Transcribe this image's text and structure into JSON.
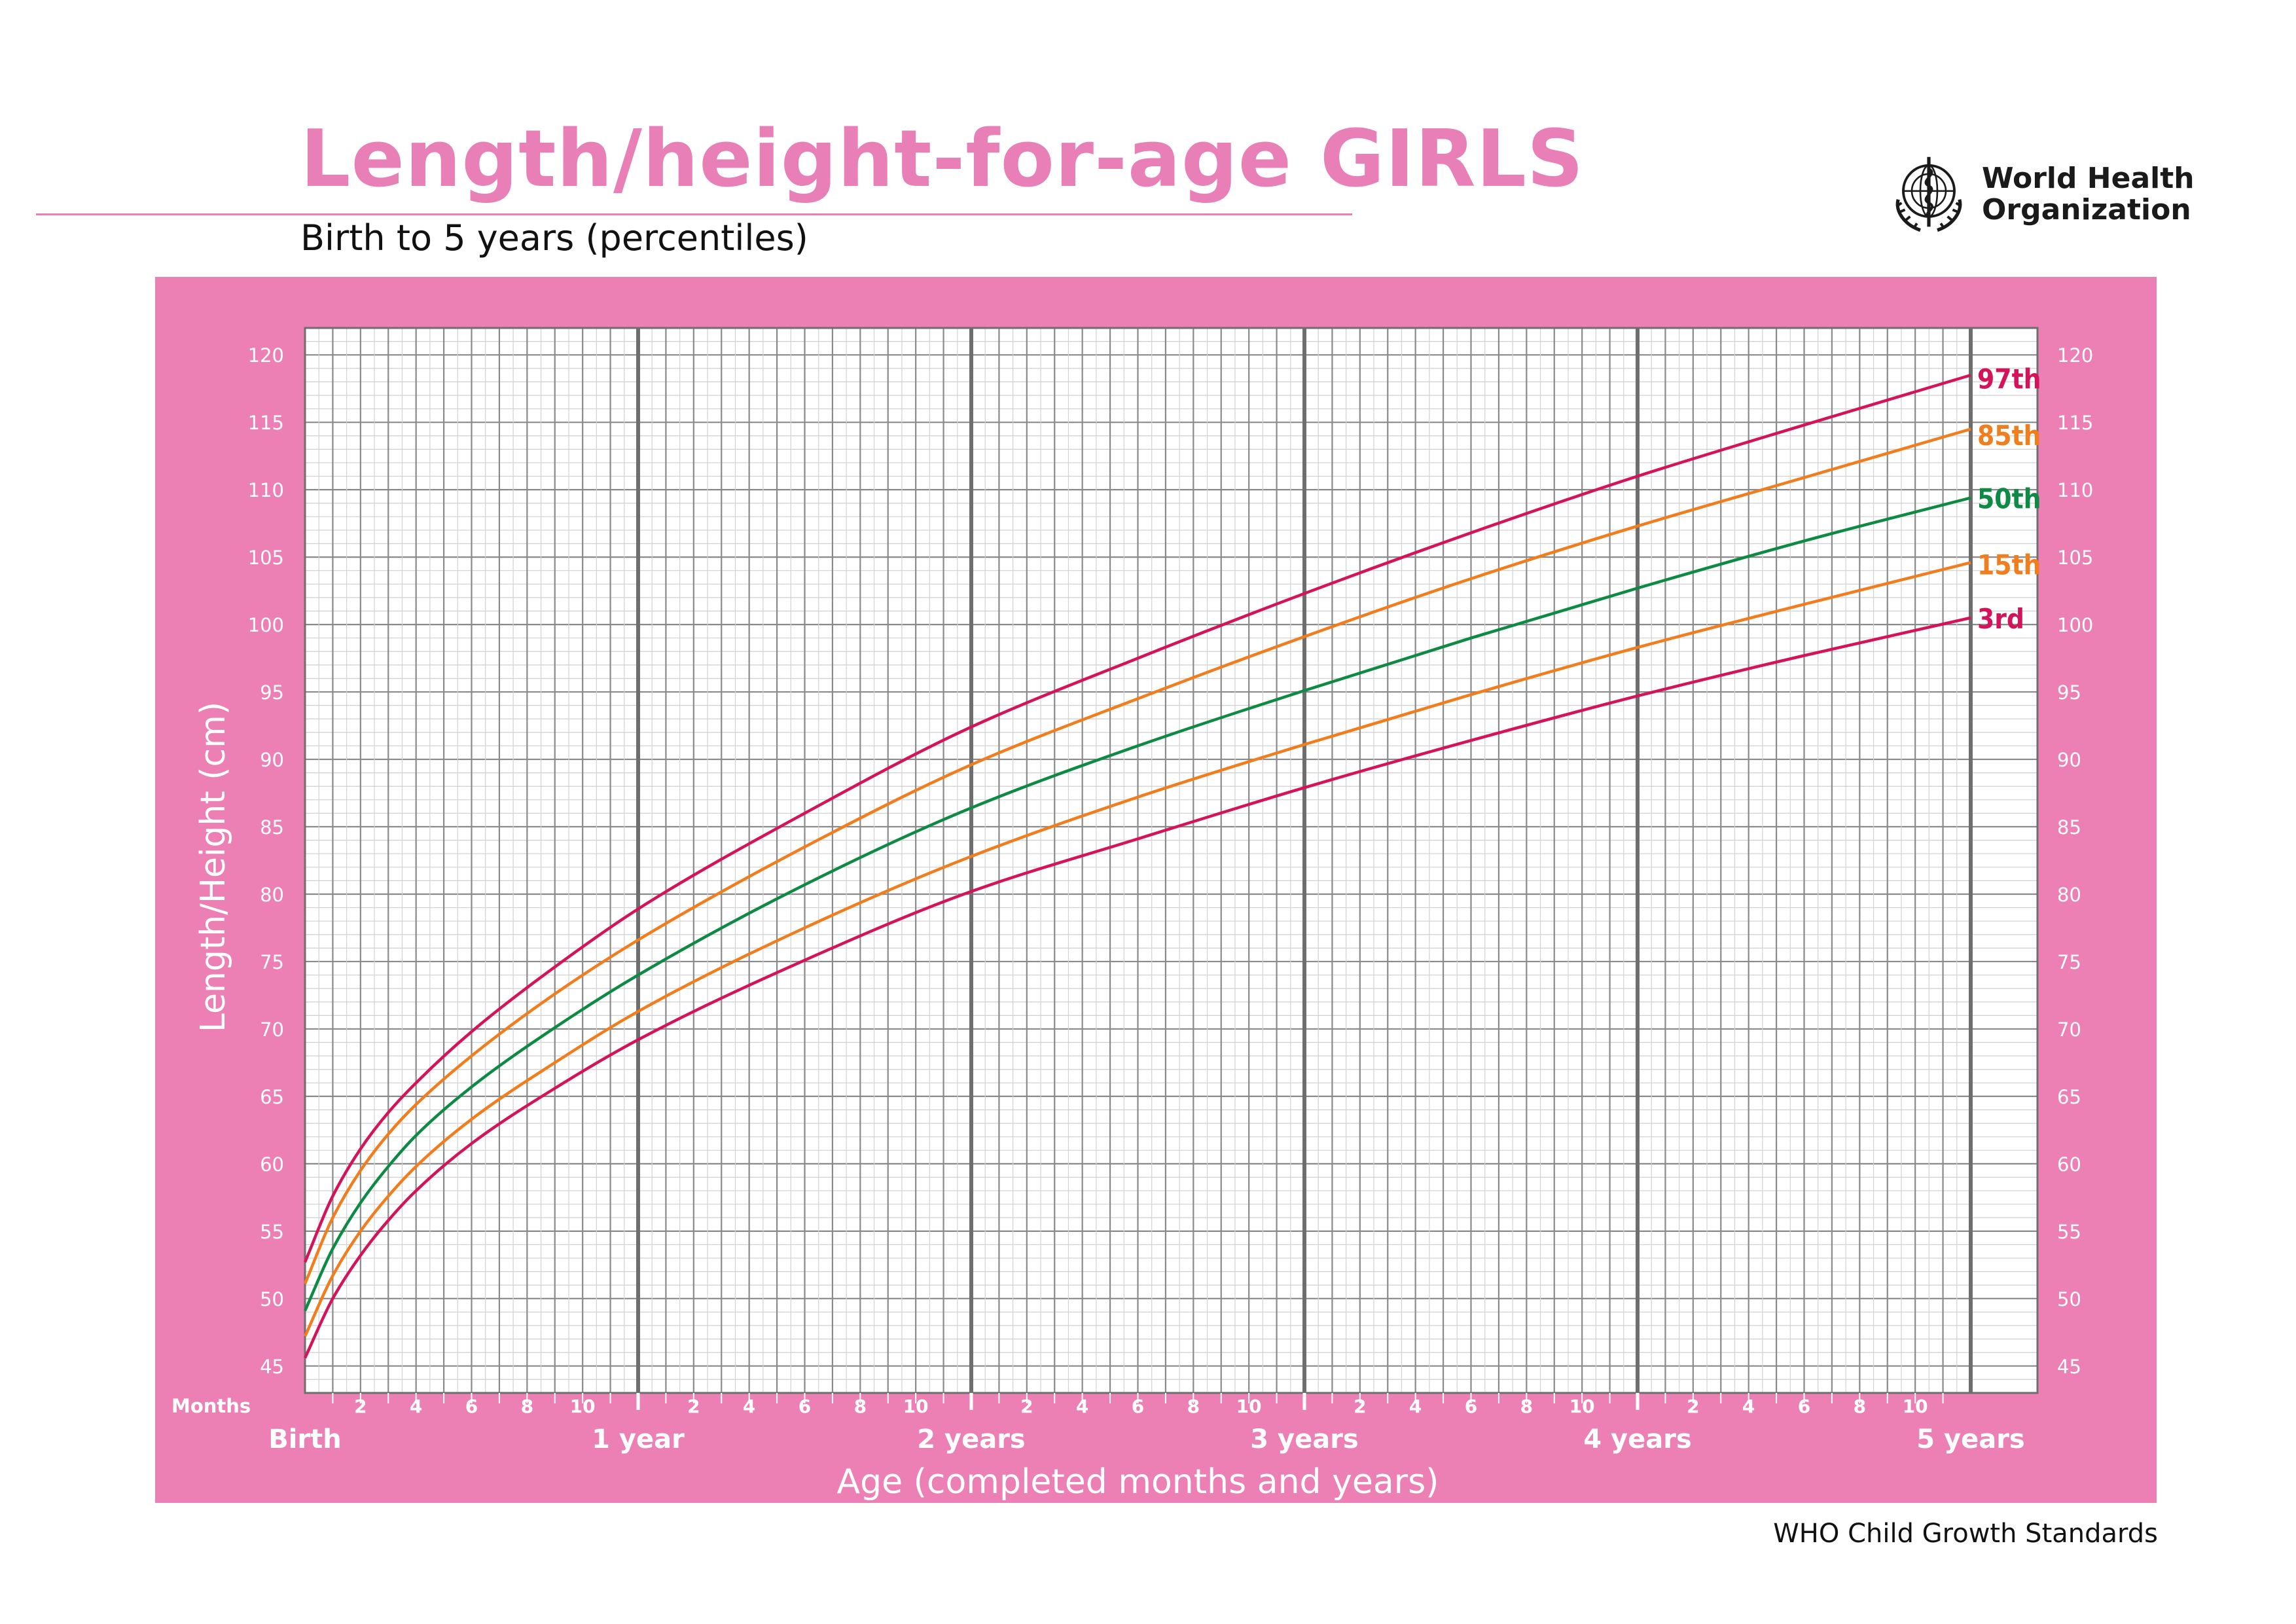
{
  "header": {
    "title": "Length/height-for-age GIRLS",
    "subtitle": "Birth to 5 years (percentiles)"
  },
  "logo": {
    "icon": "who-emblem-icon",
    "line1": "World Health",
    "line2": "Organization"
  },
  "footer": {
    "text": "WHO Child Growth Standards"
  },
  "colors": {
    "pink_title": "#E87FB6",
    "pink_panel": "#EC80B5",
    "red": "#D4145A",
    "orange": "#F07D1E",
    "green": "#0E8A44"
  },
  "chart_data": {
    "type": "line",
    "ylabel": "Length/Height (cm)",
    "xlabel": "Age (completed months and years)",
    "months_label": "Months",
    "xlim": [
      0,
      60
    ],
    "ylim": [
      43,
      122
    ],
    "y_ticks": [
      45,
      50,
      55,
      60,
      65,
      70,
      75,
      80,
      85,
      90,
      95,
      100,
      105,
      110,
      115,
      120
    ],
    "month_ticks": [
      "2",
      "4",
      "6",
      "8",
      "10"
    ],
    "year_labels": [
      {
        "month": 0,
        "label": "Birth"
      },
      {
        "month": 12,
        "label": "1 year"
      },
      {
        "month": 24,
        "label": "2 years"
      },
      {
        "month": 36,
        "label": "3 years"
      },
      {
        "month": 48,
        "label": "4 years"
      },
      {
        "month": 60,
        "label": "5 years"
      }
    ],
    "grid": true,
    "x_months": [
      0,
      1,
      2,
      3,
      4,
      6,
      9,
      12,
      18,
      24,
      30,
      36,
      42,
      48,
      54,
      60
    ],
    "series": [
      {
        "name": "97th",
        "color": "#D4145A",
        "values": [
          52.7,
          57.6,
          61.1,
          63.8,
          66.0,
          69.8,
          74.6,
          78.9,
          86.0,
          92.4,
          97.5,
          102.3,
          106.8,
          111.0,
          114.8,
          118.5
        ],
        "label_y": 118.2
      },
      {
        "name": "85th",
        "color": "#F07D1E",
        "values": [
          51.1,
          56.0,
          59.5,
          62.2,
          64.4,
          68.0,
          72.6,
          76.6,
          83.5,
          89.6,
          94.5,
          99.1,
          103.4,
          107.3,
          110.9,
          114.5
        ],
        "label_y": 114.0
      },
      {
        "name": "50th",
        "color": "#0E8A44",
        "values": [
          49.1,
          53.7,
          57.1,
          59.8,
          62.1,
          65.7,
          70.1,
          74.0,
          80.7,
          86.4,
          91.0,
          95.1,
          99.0,
          102.7,
          106.2,
          109.4
        ],
        "label_y": 109.3
      },
      {
        "name": "15th",
        "color": "#F07D1E",
        "values": [
          47.2,
          51.7,
          55.0,
          57.6,
          59.8,
          63.3,
          67.5,
          71.3,
          77.5,
          82.8,
          87.2,
          91.1,
          94.8,
          98.3,
          101.5,
          104.6
        ],
        "label_y": 104.4
      },
      {
        "name": "3rd",
        "color": "#D4145A",
        "values": [
          45.6,
          50.0,
          53.2,
          55.8,
          58.0,
          61.5,
          65.6,
          69.2,
          75.1,
          80.2,
          84.1,
          87.9,
          91.4,
          94.7,
          97.7,
          100.5
        ],
        "label_y": 100.4
      }
    ]
  }
}
